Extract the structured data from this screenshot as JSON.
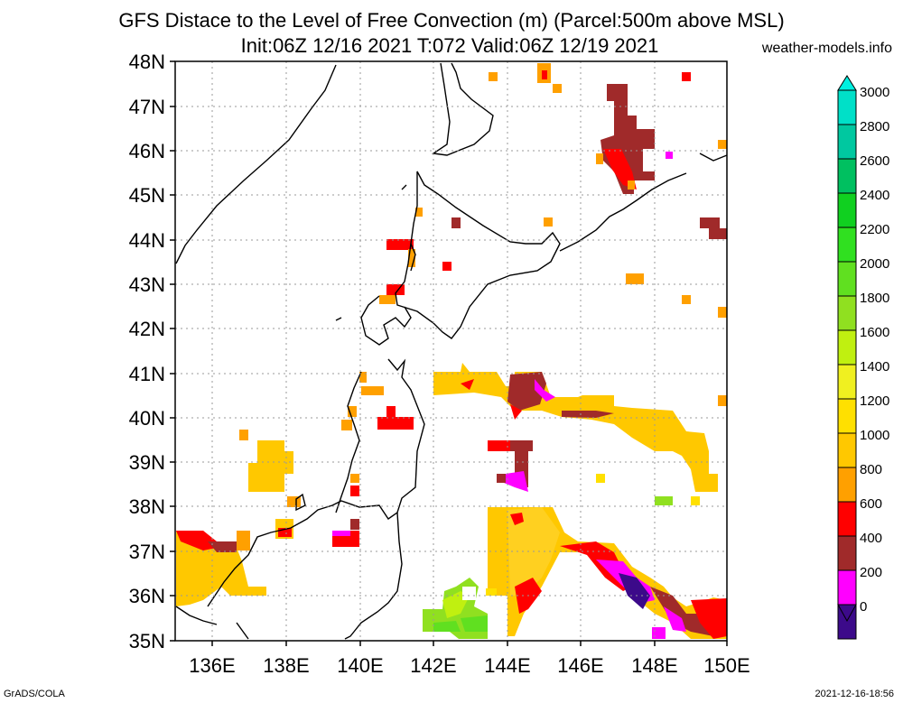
{
  "header": {
    "title_line1": "GFS Distace to the Level of Free Convection (m) (Parcel:500m above MSL)",
    "title_line2": "Init:06Z 12/16 2021 T:072 Valid:06Z 12/19 2021",
    "site": "weather-models.info"
  },
  "footer": {
    "left": "GrADS/COLA",
    "right": "2021-12-16-18:56"
  },
  "map": {
    "lon_range": [
      135,
      150
    ],
    "lat_range": [
      35,
      48
    ],
    "lat_labels": [
      "48N",
      "47N",
      "46N",
      "45N",
      "44N",
      "43N",
      "42N",
      "41N",
      "40N",
      "39N",
      "38N",
      "37N",
      "36N",
      "35N"
    ],
    "lon_labels": [
      "136E",
      "138E",
      "140E",
      "142E",
      "144E",
      "146E",
      "148E",
      "150E"
    ],
    "grid": true
  },
  "colorbar": {
    "labels": [
      "3000",
      "2800",
      "2600",
      "2400",
      "2200",
      "2000",
      "1800",
      "1600",
      "1400",
      "1200",
      "1000",
      "800",
      "600",
      "400",
      "200",
      "0"
    ],
    "colors": [
      "#00e0c8",
      "#00c8a0",
      "#00c060",
      "#10d020",
      "#30e020",
      "#60e020",
      "#90e020",
      "#c0f010",
      "#f0f020",
      "#ffe000",
      "#ffc800",
      "#ffa000",
      "#ff0000",
      "#a02a2a",
      "#ff00ff",
      "#3c0a8a"
    ],
    "top_arrow_color": "#00f0e0",
    "bottom_arrow_color": "#3c0a8a"
  }
}
